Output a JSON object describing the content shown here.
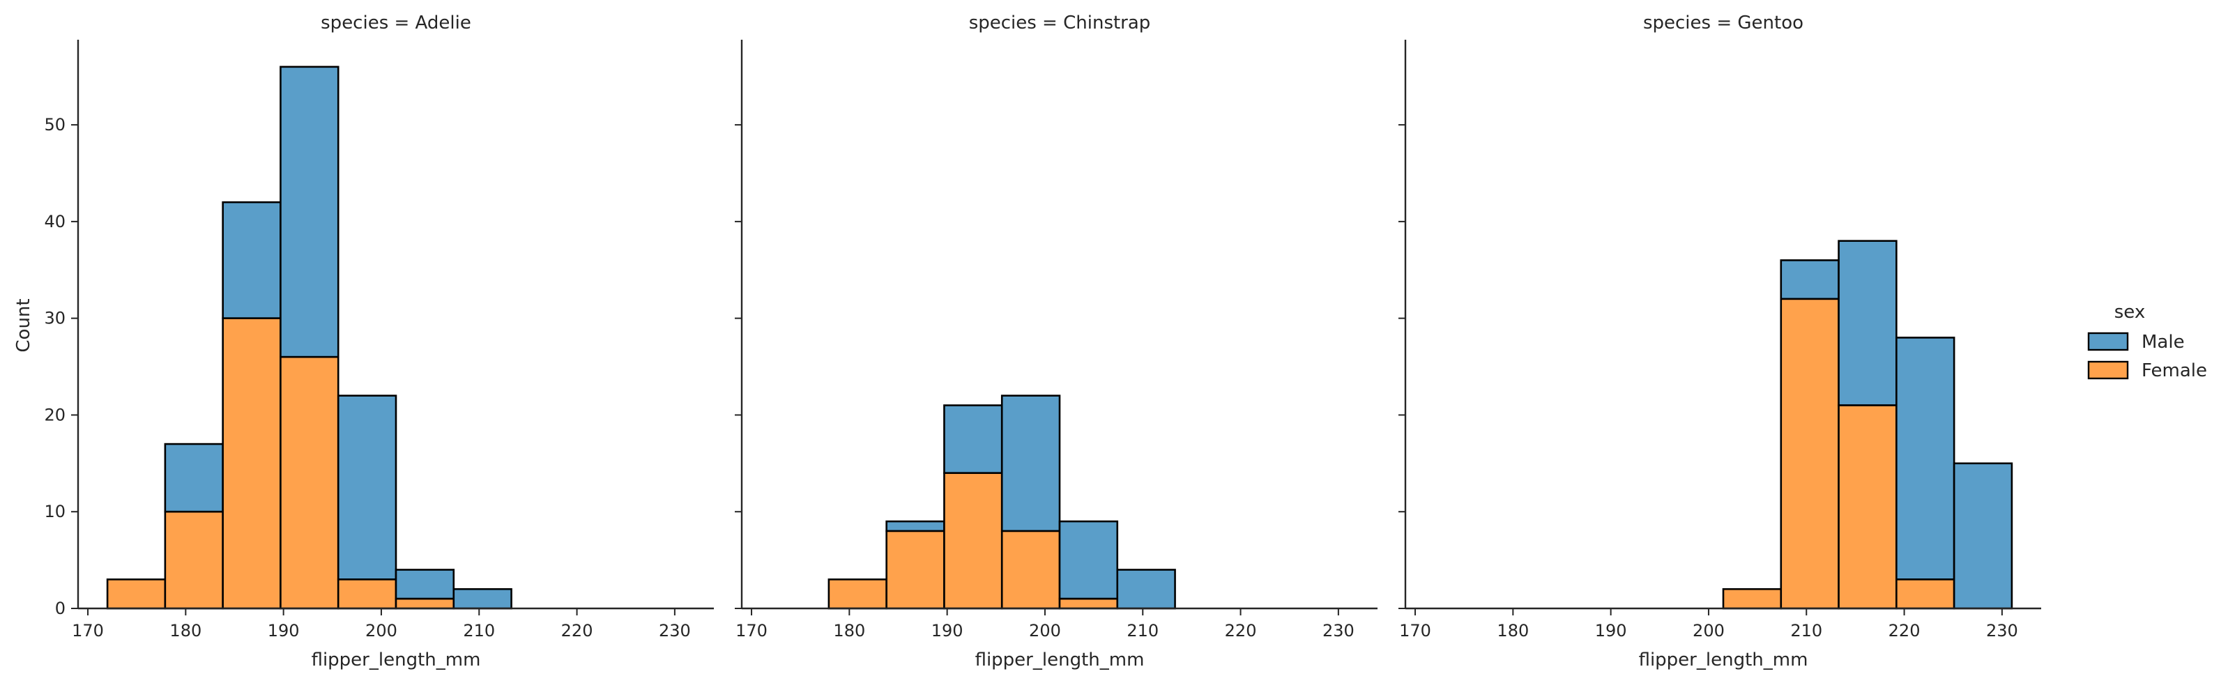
{
  "colors": {
    "Male": "#5a9ec9",
    "Female": "#ffa24c"
  },
  "chart_data": {
    "type": "bar",
    "stacked": true,
    "xlabel": "flipper_length_mm",
    "ylabel": "Count",
    "xlim": [
      169,
      234
    ],
    "ylim": [
      0,
      58.8
    ],
    "xticks": [
      170,
      180,
      190,
      200,
      210,
      220,
      230
    ],
    "yticks": [
      0,
      10,
      20,
      30,
      40,
      50
    ],
    "xtick_labels": [
      "170",
      "180",
      "190",
      "200",
      "210",
      "220",
      "230"
    ],
    "ytick_labels": [
      "0",
      "10",
      "20",
      "30",
      "40",
      "50"
    ],
    "legend": {
      "title": "sex",
      "placement": "right",
      "entries": [
        "Male",
        "Female"
      ]
    },
    "grid": false,
    "bin_edges": [
      172,
      177.9,
      183.8,
      189.7,
      195.6,
      201.5,
      207.4,
      213.3,
      219.2,
      225.1,
      231
    ],
    "panels": [
      {
        "title": "species = Adelie",
        "series": [
          {
            "name": "Female",
            "values": [
              3,
              10,
              30,
              26,
              3,
              1,
              0,
              0,
              0,
              0
            ]
          },
          {
            "name": "Male",
            "values": [
              0,
              7,
              12,
              30,
              19,
              3,
              2,
              0,
              0,
              0
            ]
          }
        ]
      },
      {
        "title": "species = Chinstrap",
        "series": [
          {
            "name": "Female",
            "values": [
              0,
              3,
              8,
              14,
              8,
              1,
              0,
              0,
              0,
              0
            ]
          },
          {
            "name": "Male",
            "values": [
              0,
              0,
              1,
              7,
              14,
              8,
              4,
              0,
              0,
              0
            ]
          }
        ]
      },
      {
        "title": "species = Gentoo",
        "series": [
          {
            "name": "Female",
            "values": [
              0,
              0,
              0,
              0,
              0,
              2,
              32,
              21,
              3,
              0
            ]
          },
          {
            "name": "Male",
            "values": [
              0,
              0,
              0,
              0,
              0,
              0,
              4,
              17,
              25,
              15
            ]
          }
        ]
      }
    ]
  }
}
